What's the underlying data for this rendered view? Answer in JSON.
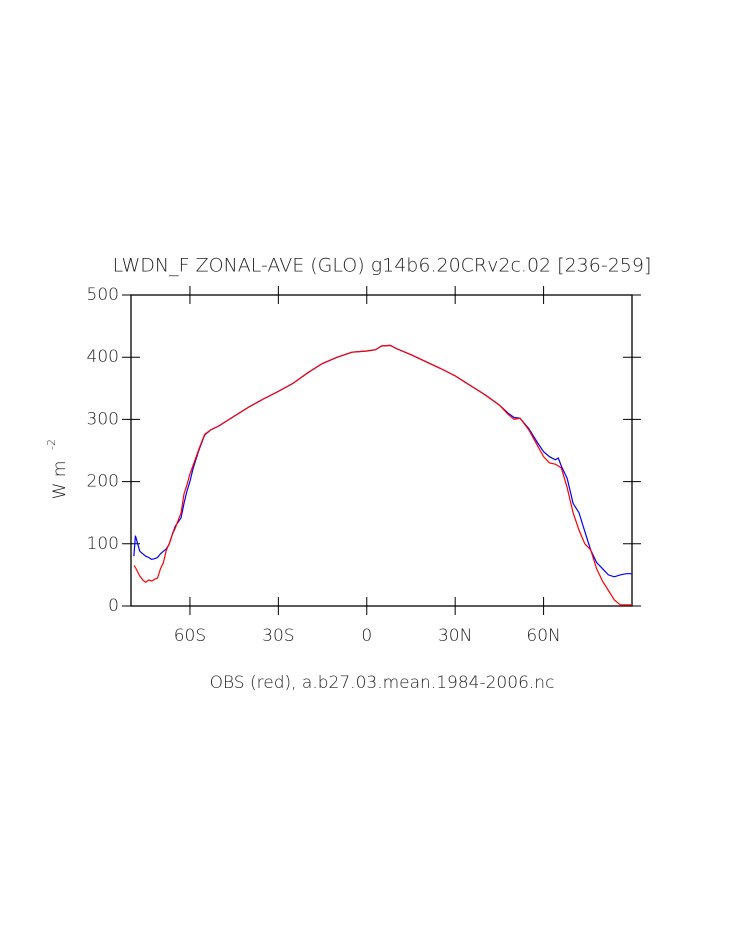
{
  "chart_data": {
    "type": "line",
    "title": "LWDN_F ZONAL-AVE (GLO) g14b6.20CRv2c.02 [236-259]",
    "x_label": "OBS (red), a.b27.03.mean.1984-2006.nc",
    "y_label": "W  m",
    "y_label_exponent": "-2",
    "x": [
      -79,
      -78.5,
      -77,
      -76,
      -75,
      -74,
      -73,
      -72,
      -71,
      -70,
      -69,
      -68,
      -67,
      -66,
      -65,
      -64,
      -63,
      -62,
      -61,
      -60,
      -59,
      -57,
      -55,
      -53,
      -50,
      -45,
      -40,
      -35,
      -30,
      -25,
      -20,
      -15,
      -10,
      -5,
      0,
      3,
      5,
      8,
      10,
      15,
      20,
      25,
      30,
      35,
      40,
      45,
      48,
      50,
      52,
      55,
      58,
      60,
      62,
      64,
      65,
      66,
      68,
      70,
      72,
      74,
      76,
      78,
      80,
      82,
      84,
      86,
      88,
      90
    ],
    "series": [
      {
        "color": "#0000ff",
        "values": [
          80,
          113,
          88,
          84,
          80,
          78,
          75,
          76,
          78,
          84,
          88,
          92,
          100,
          115,
          128,
          135,
          142,
          165,
          185,
          200,
          220,
          250,
          275,
          283,
          290,
          305,
          320,
          333,
          345,
          358,
          375,
          390,
          400,
          408,
          410,
          412,
          418,
          419,
          414,
          404,
          393,
          382,
          370,
          355,
          340,
          323,
          310,
          303,
          302,
          285,
          262,
          248,
          240,
          235,
          238,
          225,
          205,
          165,
          150,
          120,
          90,
          70,
          60,
          50,
          47,
          50,
          52,
          52
        ]
      },
      {
        "color": "#ff0000",
        "values": [
          65,
          62,
          48,
          42,
          38,
          42,
          40,
          43,
          45,
          60,
          70,
          90,
          100,
          115,
          125,
          138,
          150,
          180,
          195,
          212,
          225,
          252,
          276,
          283,
          290,
          305,
          320,
          333,
          345,
          358,
          375,
          390,
          400,
          408,
          410,
          412,
          418,
          419,
          414,
          404,
          393,
          382,
          370,
          355,
          340,
          323,
          308,
          300,
          302,
          283,
          257,
          240,
          230,
          228,
          225,
          222,
          190,
          150,
          122,
          100,
          90,
          60,
          40,
          25,
          10,
          2,
          2,
          2
        ]
      }
    ],
    "xlim": [
      -80,
      90
    ],
    "xticks": [
      {
        "value": -60,
        "label": "60S"
      },
      {
        "value": -30,
        "label": "30S"
      },
      0,
      {
        "value": 30,
        "label": "30N"
      },
      {
        "value": 60,
        "label": "60N"
      }
    ],
    "ylim": [
      0,
      500
    ],
    "yticks": [
      0,
      100,
      200,
      300,
      400,
      500
    ]
  }
}
